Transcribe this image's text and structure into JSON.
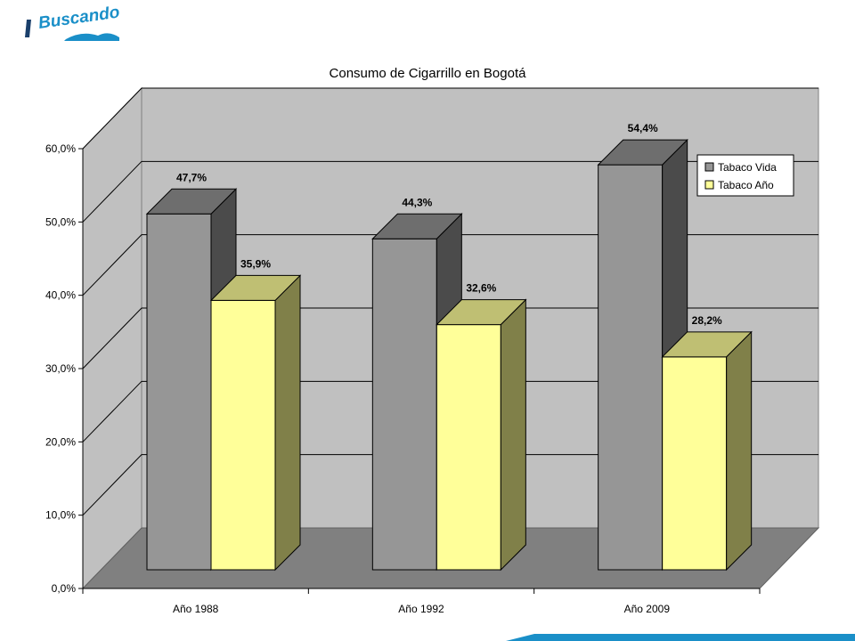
{
  "logo": {
    "text": "Buscando"
  },
  "colors": {
    "wall": "#c0c0c0",
    "floor": "#808080",
    "grid": "#000000",
    "series1_front": "#969696",
    "series1_top": "#6e6e6e",
    "series1_side": "#4b4b4b",
    "series2_front": "#ffff99",
    "series2_top": "#bfbf73",
    "series2_side": "#808049",
    "logo_blue": "#1a8fc8"
  },
  "chart_data": {
    "type": "bar",
    "title": "Consumo de Cigarrillo en Bogotá",
    "categories": [
      "Año 1988",
      "Año 1992",
      "Año 2009"
    ],
    "series": [
      {
        "name": "Tabaco Vida",
        "values": [
          47.7,
          44.3,
          54.4
        ],
        "labels": [
          "47,7%",
          "44,3%",
          "54,4%"
        ]
      },
      {
        "name": "Tabaco Año",
        "values": [
          35.9,
          32.6,
          28.2
        ],
        "labels": [
          "35,9%",
          "32,6%",
          "28,2%"
        ]
      }
    ],
    "ylim": [
      0,
      60
    ],
    "yticks": [
      "0,0%",
      "10,0%",
      "20,0%",
      "30,0%",
      "40,0%",
      "50,0%",
      "60,0%"
    ],
    "grid": true,
    "legend_position": "top-right"
  }
}
